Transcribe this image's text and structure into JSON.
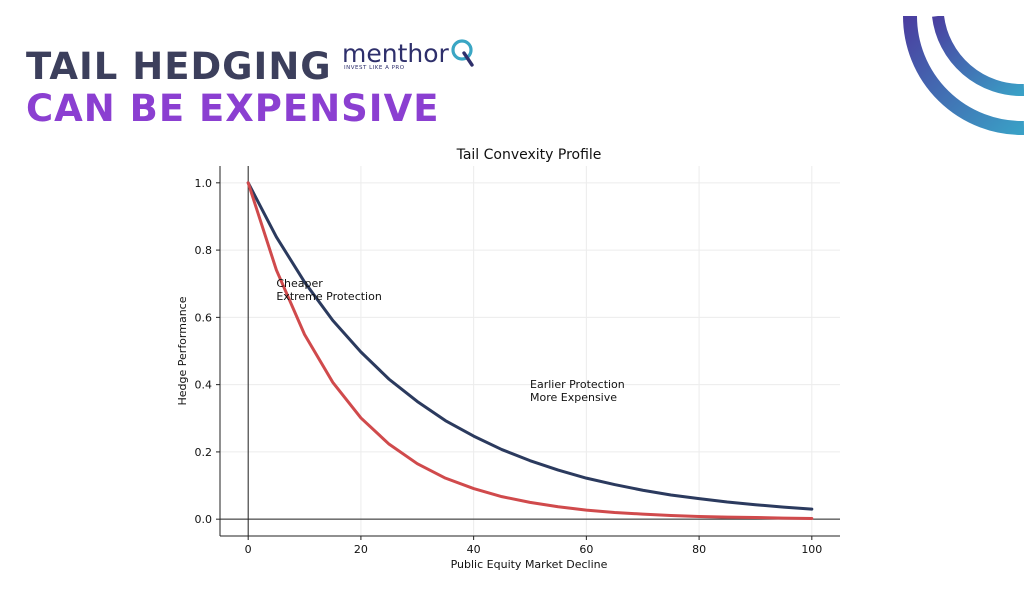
{
  "header": {
    "title_line1": "TAIL HEDGING",
    "title_line2": "CAN BE EXPENSIVE",
    "brand_name": "menthor",
    "brand_tagline": "INVEST LIKE A PRO",
    "colors": {
      "title_dark": "#3c3f5c",
      "title_accent": "#8b3fd1",
      "brand": "#2e2f6b",
      "brand_q": "#3aa6c4"
    }
  },
  "chart_data": {
    "type": "line",
    "title": "Tail Convexity Profile",
    "xlabel": "Public Equity Market Decline",
    "ylabel": "Hedge Performance",
    "xlim": [
      -5,
      105
    ],
    "ylim": [
      -0.05,
      1.05
    ],
    "xticks": [
      0,
      20,
      40,
      60,
      80,
      100
    ],
    "yticks": [
      0.0,
      0.2,
      0.4,
      0.6,
      0.8,
      1.0
    ],
    "xtick_labels": [
      "0",
      "20",
      "40",
      "60",
      "80",
      "100"
    ],
    "ytick_labels": [
      "0.0",
      "0.2",
      "0.4",
      "0.6",
      "0.8",
      "1.0"
    ],
    "grid": true,
    "x": [
      0,
      5,
      10,
      15,
      20,
      25,
      30,
      35,
      40,
      45,
      50,
      55,
      60,
      65,
      70,
      75,
      80,
      85,
      90,
      95,
      100
    ],
    "series": [
      {
        "color": "#2b3a5e",
        "values": [
          1.0,
          0.839,
          0.705,
          0.591,
          0.497,
          0.416,
          0.35,
          0.293,
          0.247,
          0.207,
          0.174,
          0.146,
          0.122,
          0.103,
          0.086,
          0.072,
          0.061,
          0.051,
          0.043,
          0.036,
          0.03
        ]
      },
      {
        "color": "#d04a4c",
        "values": [
          1.0,
          0.741,
          0.549,
          0.407,
          0.301,
          0.223,
          0.165,
          0.122,
          0.091,
          0.067,
          0.05,
          0.037,
          0.027,
          0.02,
          0.015,
          0.011,
          0.008,
          0.006,
          0.005,
          0.003,
          0.002
        ]
      }
    ],
    "annotations": [
      {
        "lines": [
          "Cheaper",
          "Extreme Protection"
        ],
        "x": 5,
        "y": 0.69
      },
      {
        "lines": [
          "Earlier Protection",
          "More Expensive"
        ],
        "x": 50,
        "y": 0.39
      }
    ]
  }
}
